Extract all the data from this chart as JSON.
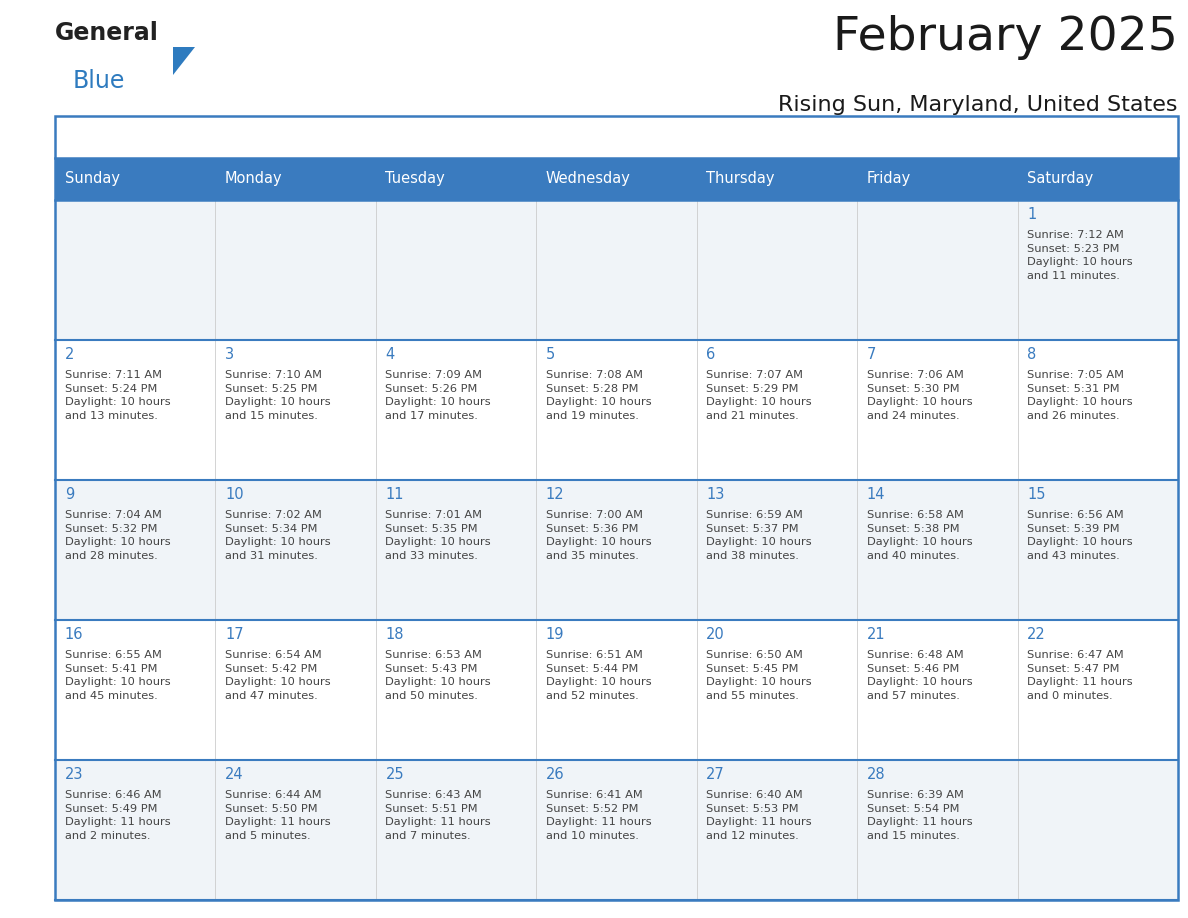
{
  "title": "February 2025",
  "subtitle": "Rising Sun, Maryland, United States",
  "header_color": "#3a7bbf",
  "header_text_color": "#ffffff",
  "cell_bg_odd": "#f0f4f8",
  "cell_bg_even": "#ffffff",
  "border_color": "#3a7bbf",
  "day_number_color": "#3a7bbf",
  "text_color": "#444444",
  "grid_line_color": "#3a7bbf",
  "cell_border_color": "#cccccc",
  "days_of_week": [
    "Sunday",
    "Monday",
    "Tuesday",
    "Wednesday",
    "Thursday",
    "Friday",
    "Saturday"
  ],
  "weeks": [
    [
      {
        "day": "",
        "info": ""
      },
      {
        "day": "",
        "info": ""
      },
      {
        "day": "",
        "info": ""
      },
      {
        "day": "",
        "info": ""
      },
      {
        "day": "",
        "info": ""
      },
      {
        "day": "",
        "info": ""
      },
      {
        "day": "1",
        "info": "Sunrise: 7:12 AM\nSunset: 5:23 PM\nDaylight: 10 hours\nand 11 minutes."
      }
    ],
    [
      {
        "day": "2",
        "info": "Sunrise: 7:11 AM\nSunset: 5:24 PM\nDaylight: 10 hours\nand 13 minutes."
      },
      {
        "day": "3",
        "info": "Sunrise: 7:10 AM\nSunset: 5:25 PM\nDaylight: 10 hours\nand 15 minutes."
      },
      {
        "day": "4",
        "info": "Sunrise: 7:09 AM\nSunset: 5:26 PM\nDaylight: 10 hours\nand 17 minutes."
      },
      {
        "day": "5",
        "info": "Sunrise: 7:08 AM\nSunset: 5:28 PM\nDaylight: 10 hours\nand 19 minutes."
      },
      {
        "day": "6",
        "info": "Sunrise: 7:07 AM\nSunset: 5:29 PM\nDaylight: 10 hours\nand 21 minutes."
      },
      {
        "day": "7",
        "info": "Sunrise: 7:06 AM\nSunset: 5:30 PM\nDaylight: 10 hours\nand 24 minutes."
      },
      {
        "day": "8",
        "info": "Sunrise: 7:05 AM\nSunset: 5:31 PM\nDaylight: 10 hours\nand 26 minutes."
      }
    ],
    [
      {
        "day": "9",
        "info": "Sunrise: 7:04 AM\nSunset: 5:32 PM\nDaylight: 10 hours\nand 28 minutes."
      },
      {
        "day": "10",
        "info": "Sunrise: 7:02 AM\nSunset: 5:34 PM\nDaylight: 10 hours\nand 31 minutes."
      },
      {
        "day": "11",
        "info": "Sunrise: 7:01 AM\nSunset: 5:35 PM\nDaylight: 10 hours\nand 33 minutes."
      },
      {
        "day": "12",
        "info": "Sunrise: 7:00 AM\nSunset: 5:36 PM\nDaylight: 10 hours\nand 35 minutes."
      },
      {
        "day": "13",
        "info": "Sunrise: 6:59 AM\nSunset: 5:37 PM\nDaylight: 10 hours\nand 38 minutes."
      },
      {
        "day": "14",
        "info": "Sunrise: 6:58 AM\nSunset: 5:38 PM\nDaylight: 10 hours\nand 40 minutes."
      },
      {
        "day": "15",
        "info": "Sunrise: 6:56 AM\nSunset: 5:39 PM\nDaylight: 10 hours\nand 43 minutes."
      }
    ],
    [
      {
        "day": "16",
        "info": "Sunrise: 6:55 AM\nSunset: 5:41 PM\nDaylight: 10 hours\nand 45 minutes."
      },
      {
        "day": "17",
        "info": "Sunrise: 6:54 AM\nSunset: 5:42 PM\nDaylight: 10 hours\nand 47 minutes."
      },
      {
        "day": "18",
        "info": "Sunrise: 6:53 AM\nSunset: 5:43 PM\nDaylight: 10 hours\nand 50 minutes."
      },
      {
        "day": "19",
        "info": "Sunrise: 6:51 AM\nSunset: 5:44 PM\nDaylight: 10 hours\nand 52 minutes."
      },
      {
        "day": "20",
        "info": "Sunrise: 6:50 AM\nSunset: 5:45 PM\nDaylight: 10 hours\nand 55 minutes."
      },
      {
        "day": "21",
        "info": "Sunrise: 6:48 AM\nSunset: 5:46 PM\nDaylight: 10 hours\nand 57 minutes."
      },
      {
        "day": "22",
        "info": "Sunrise: 6:47 AM\nSunset: 5:47 PM\nDaylight: 11 hours\nand 0 minutes."
      }
    ],
    [
      {
        "day": "23",
        "info": "Sunrise: 6:46 AM\nSunset: 5:49 PM\nDaylight: 11 hours\nand 2 minutes."
      },
      {
        "day": "24",
        "info": "Sunrise: 6:44 AM\nSunset: 5:50 PM\nDaylight: 11 hours\nand 5 minutes."
      },
      {
        "day": "25",
        "info": "Sunrise: 6:43 AM\nSunset: 5:51 PM\nDaylight: 11 hours\nand 7 minutes."
      },
      {
        "day": "26",
        "info": "Sunrise: 6:41 AM\nSunset: 5:52 PM\nDaylight: 11 hours\nand 10 minutes."
      },
      {
        "day": "27",
        "info": "Sunrise: 6:40 AM\nSunset: 5:53 PM\nDaylight: 11 hours\nand 12 minutes."
      },
      {
        "day": "28",
        "info": "Sunrise: 6:39 AM\nSunset: 5:54 PM\nDaylight: 11 hours\nand 15 minutes."
      },
      {
        "day": "",
        "info": ""
      }
    ]
  ],
  "logo_general_color": "#222222",
  "logo_blue_color": "#2e7bbf",
  "logo_triangle_color": "#2e7bbf"
}
